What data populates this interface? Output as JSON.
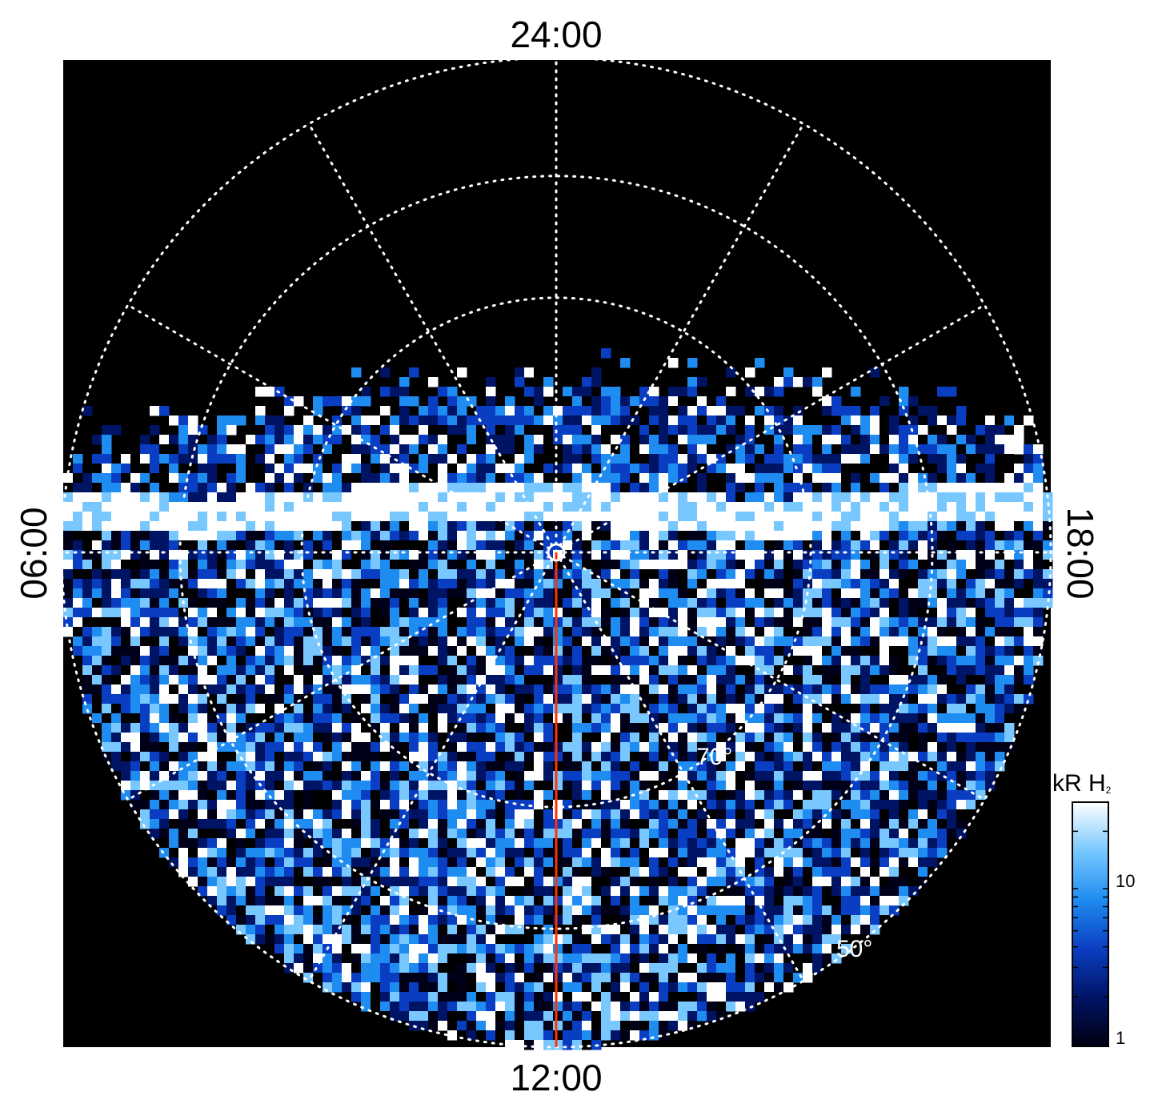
{
  "chart_data": {
    "type": "heatmap",
    "projection": "polar",
    "local_time_labels": {
      "top": "24:00",
      "bottom": "12:00",
      "left": "06:00",
      "right": "18:00"
    },
    "latitude_labels": [
      "70°",
      "50°"
    ],
    "colorbar": {
      "title": "kR H",
      "title_subscript": "2",
      "scale": "log",
      "range": [
        1,
        30
      ],
      "ticks": [
        {
          "value": 1,
          "label": "1"
        },
        {
          "value": 10,
          "label": "10"
        }
      ],
      "colors": [
        "#000010",
        "#001466",
        "#0a3ec2",
        "#1e8cf0",
        "#78c8ff",
        "#ffffff"
      ]
    },
    "grid": true,
    "background": "#000000",
    "plot_frame": "#000000",
    "grid_color": "#ffffff",
    "meridian_line_color": "#ff3300",
    "pole_marker_color": "#ffffff",
    "auroral_oval": {
      "description": "bright band of emission across the upper half of the disk",
      "level_kR": 30
    }
  }
}
